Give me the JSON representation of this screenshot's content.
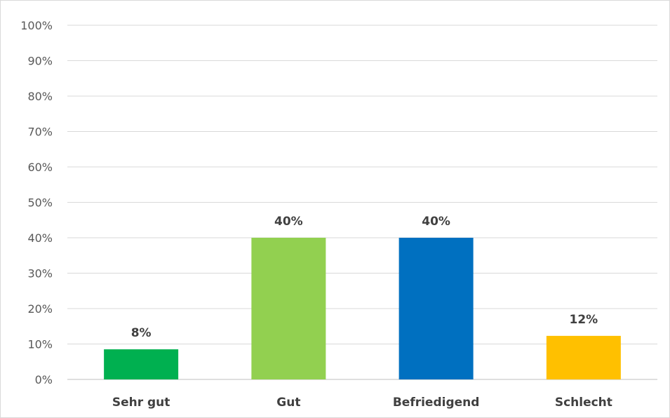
{
  "chart_data": {
    "type": "bar",
    "categories": [
      "Sehr gut",
      "Gut",
      "Befriedigend",
      "Schlecht"
    ],
    "values": [
      8.5,
      40,
      40,
      12.3
    ],
    "data_labels": [
      "8%",
      "40%",
      "40%",
      "12%"
    ],
    "bar_colors": [
      "#00b050",
      "#92d050",
      "#0070c0",
      "#ffc000"
    ],
    "ylim": [
      0,
      100
    ],
    "yticks": [
      0,
      10,
      20,
      30,
      40,
      50,
      60,
      70,
      80,
      90,
      100
    ],
    "ytick_labels": [
      "0%",
      "10%",
      "20%",
      "30%",
      "40%",
      "50%",
      "60%",
      "70%",
      "80%",
      "90%",
      "100%"
    ],
    "grid": true,
    "legend": "none",
    "title": "",
    "xlabel": "",
    "ylabel": ""
  }
}
